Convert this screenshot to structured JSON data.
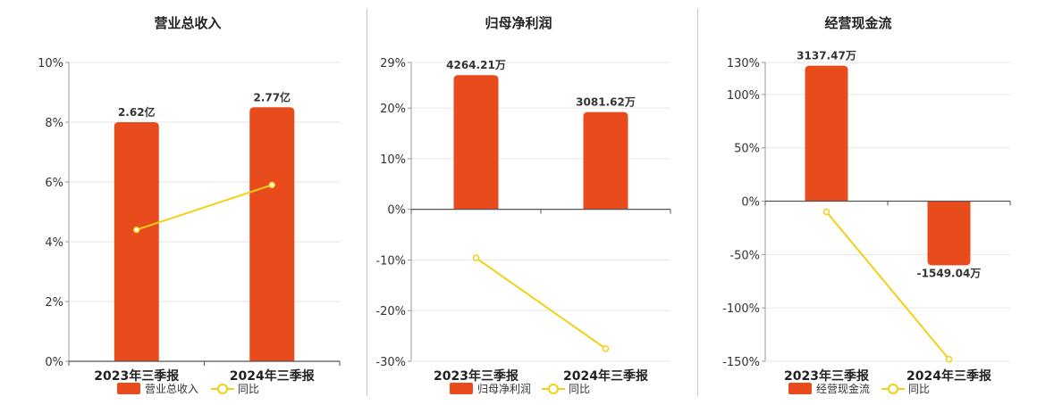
{
  "colors": {
    "bar": "#e84c1c",
    "line": "#f2d016",
    "axis": "#333333",
    "grid": "#e6e6e6"
  },
  "legend": {
    "line_label": "同比"
  },
  "chart_data": [
    {
      "type": "bar",
      "title": "营业总收入",
      "categories": [
        "2023年三季报",
        "2024年三季报"
      ],
      "bar_labels": [
        "2.62亿",
        "2.77亿"
      ],
      "series": [
        {
          "name": "营业总收入",
          "type": "bar",
          "values": [
            8.0,
            8.5
          ]
        },
        {
          "name": "同比",
          "type": "line",
          "values": [
            4.4,
            5.9
          ]
        }
      ],
      "yticks": [
        "10%",
        "8%",
        "6%",
        "4%",
        "2%",
        "0%"
      ],
      "yvals": [
        10,
        8,
        6,
        4,
        2,
        0
      ],
      "ylim": [
        0,
        10
      ],
      "grid": true,
      "legend_position": "bottom"
    },
    {
      "type": "bar",
      "title": "归母净利润",
      "categories": [
        "2023年三季报",
        "2024年三季报"
      ],
      "bar_labels": [
        "4264.21万",
        "3081.62万"
      ],
      "series": [
        {
          "name": "归母净利润",
          "type": "bar",
          "values": [
            26.5,
            19.2
          ]
        },
        {
          "name": "同比",
          "type": "line",
          "values": [
            -9.6,
            -27.5
          ]
        }
      ],
      "yticks": [
        "29%",
        "20%",
        "10%",
        "0%",
        "-10%",
        "-20%",
        "-30%"
      ],
      "yvals": [
        29,
        20,
        10,
        0,
        -10,
        -20,
        -30
      ],
      "ylim": [
        -30,
        29
      ],
      "grid": true,
      "legend_position": "bottom"
    },
    {
      "type": "bar",
      "title": "经营现金流",
      "categories": [
        "2023年三季报",
        "2024年三季报"
      ],
      "bar_labels": [
        "3137.47万",
        "-1549.04万"
      ],
      "series": [
        {
          "name": "经营现金流",
          "type": "bar",
          "values": [
            127.0,
            -60.0
          ]
        },
        {
          "name": "同比",
          "type": "line",
          "values": [
            -10.0,
            -148.0
          ]
        }
      ],
      "yticks": [
        "130%",
        "100%",
        "50%",
        "0%",
        "-50%",
        "-100%",
        "-150%"
      ],
      "yvals": [
        130,
        100,
        50,
        0,
        -50,
        -100,
        -150
      ],
      "ylim": [
        -150,
        130
      ],
      "grid": true,
      "legend_position": "bottom"
    }
  ]
}
